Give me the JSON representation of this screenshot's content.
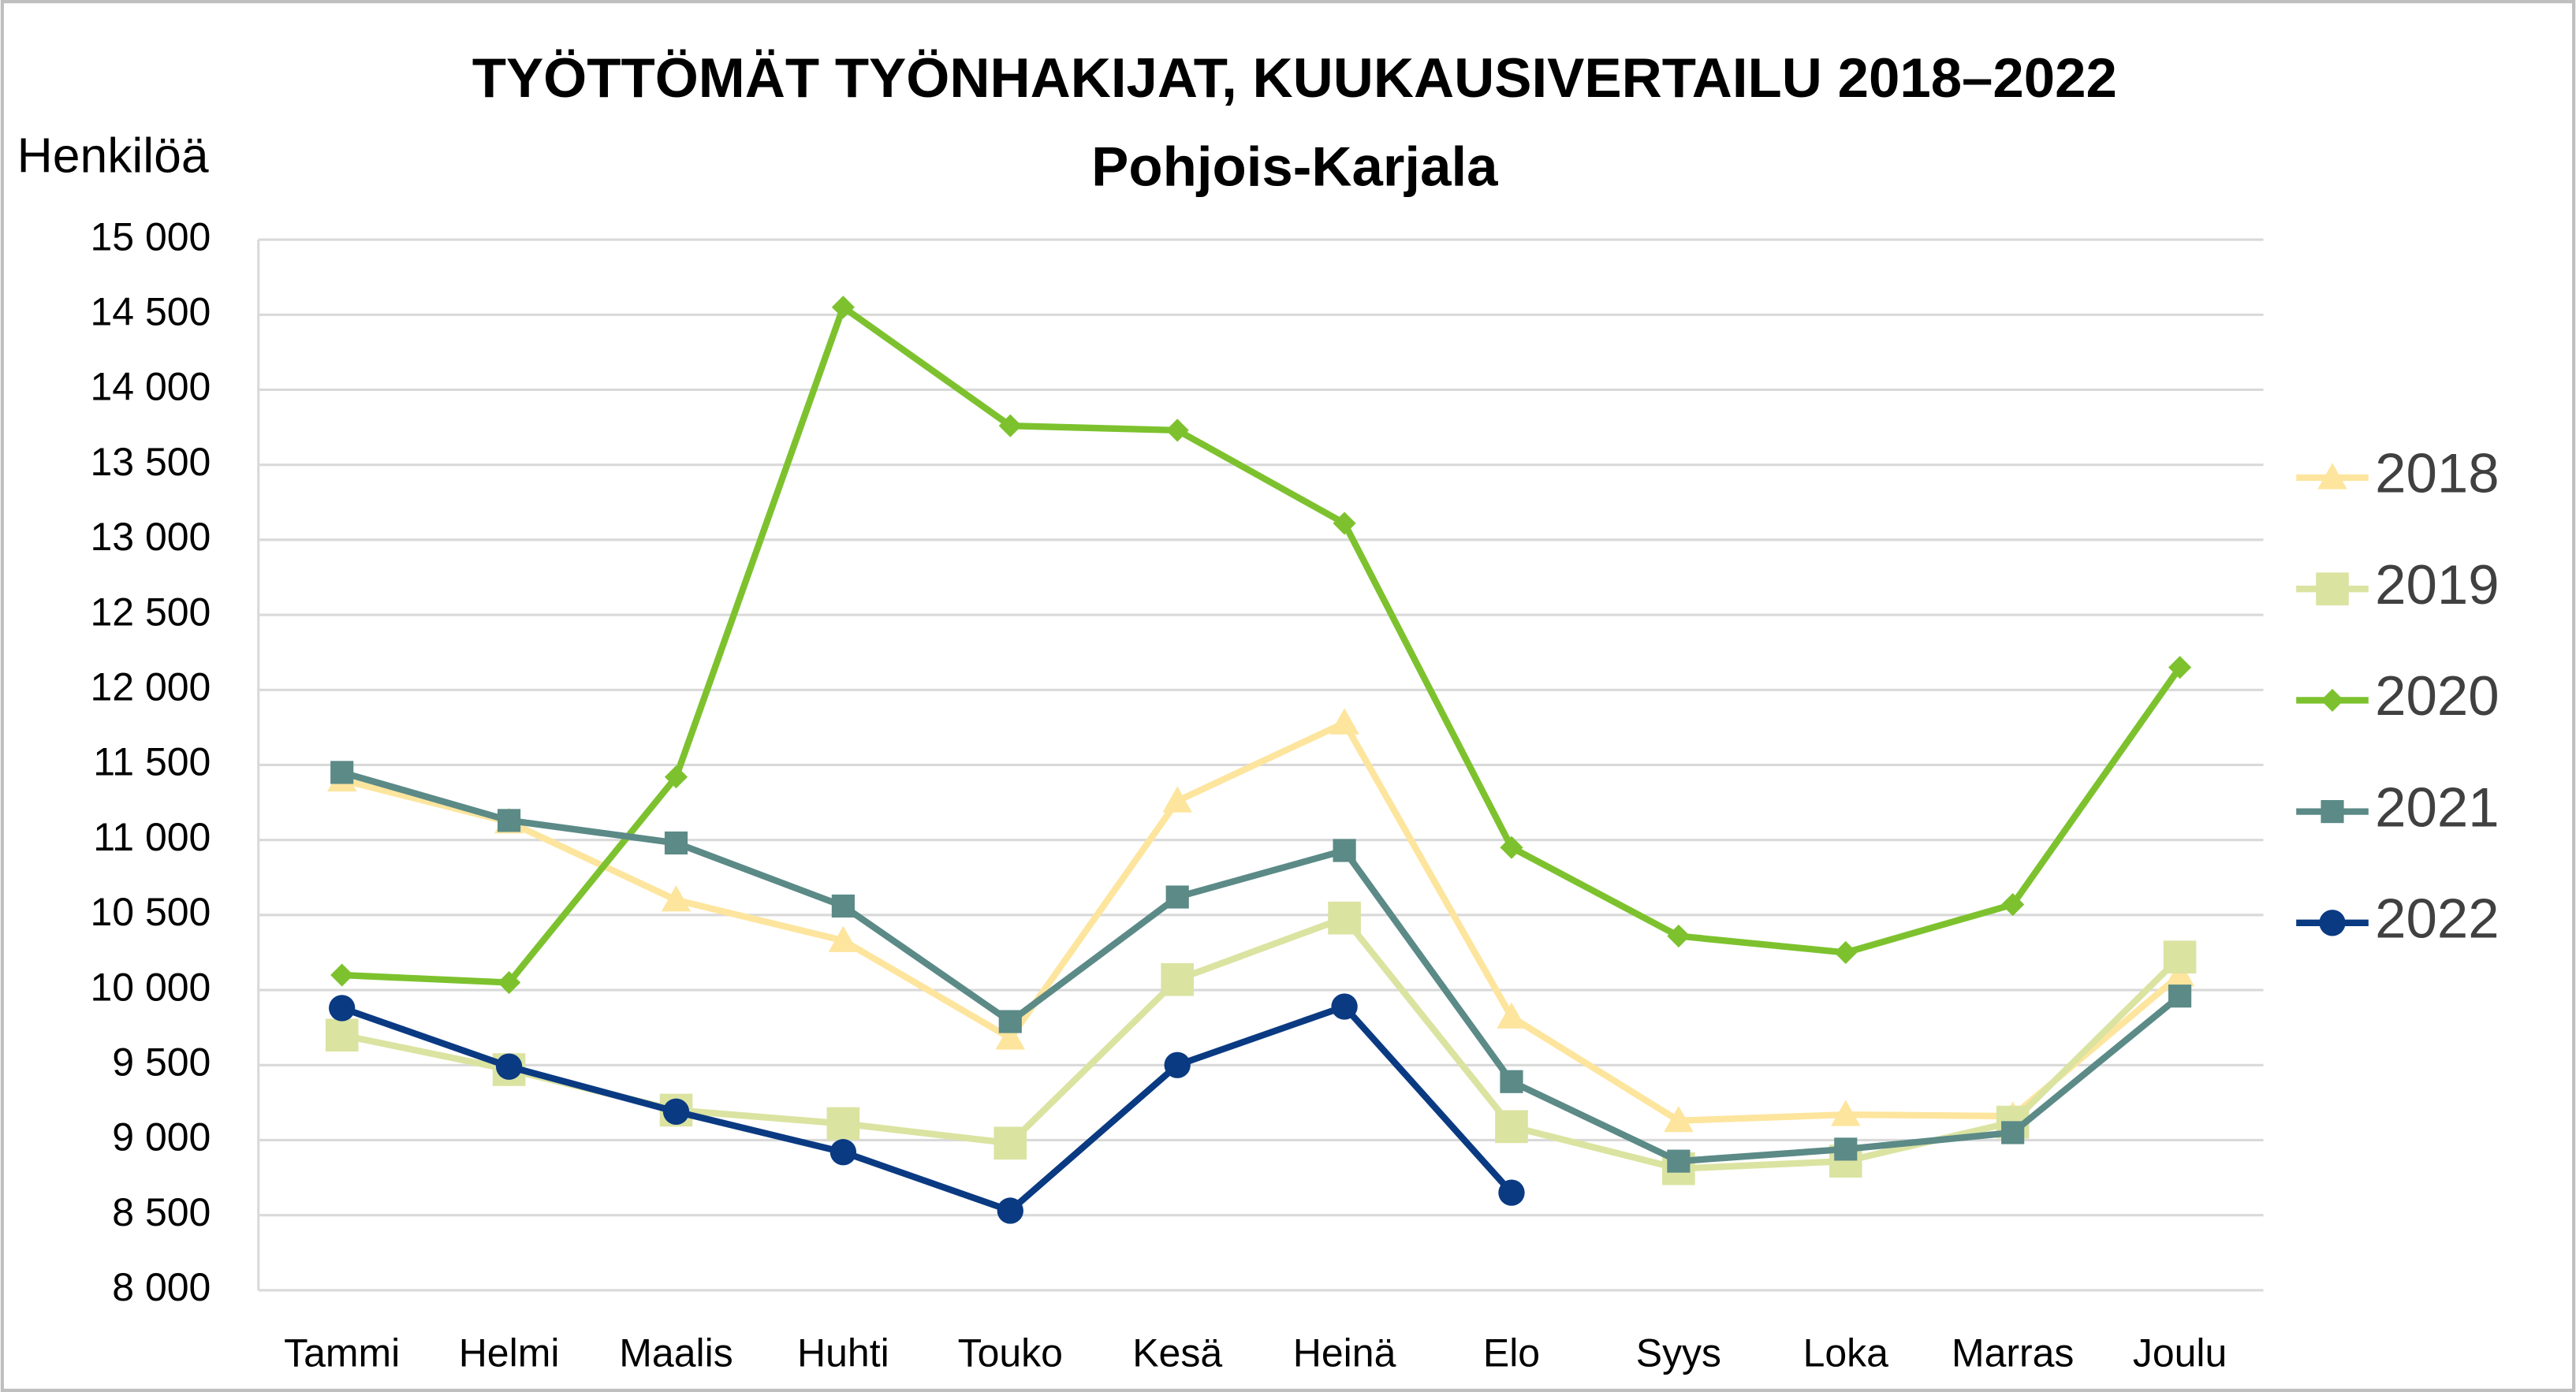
{
  "chart_data": {
    "type": "line",
    "title": "TYÖTTÖMÄT TYÖNHAKIJAT, KUUKAUSIVERTAILU 2018–2022",
    "subtitle": "Pohjois-Karjala",
    "y_label": "Henkilöä",
    "categories": [
      "Tammi",
      "Helmi",
      "Maalis",
      "Huhti",
      "Touko",
      "Kesä",
      "Heinä",
      "Elo",
      "Syys",
      "Loka",
      "Marras",
      "Joulu"
    ],
    "series": [
      {
        "name": "2018",
        "color": "#fde59e",
        "marker": "triangle",
        "values": [
          11400,
          11120,
          10600,
          10330,
          9680,
          11260,
          11780,
          9820,
          9130,
          9170,
          9160,
          10100
        ]
      },
      {
        "name": "2019",
        "color": "#dbe3a1",
        "marker": "square",
        "values": [
          9700,
          9470,
          9200,
          9110,
          8980,
          10070,
          10480,
          9090,
          8810,
          8860,
          9120,
          10220
        ]
      },
      {
        "name": "2020",
        "color": "#7dc22e",
        "marker": "diamond",
        "values": [
          10100,
          10050,
          11420,
          14550,
          13760,
          13730,
          13110,
          10950,
          10360,
          10250,
          10570,
          12150
        ]
      },
      {
        "name": "2021",
        "color": "#5b8a87",
        "marker": "square",
        "values": [
          11450,
          11130,
          10980,
          10560,
          9790,
          10620,
          10930,
          9390,
          8860,
          8940,
          9050,
          9960
        ]
      },
      {
        "name": "2022",
        "color": "#0a3a82",
        "marker": "circle",
        "values": [
          9880,
          9490,
          9190,
          8920,
          8530,
          9500,
          9890,
          8650,
          null,
          null,
          null,
          null
        ]
      }
    ],
    "ylim": [
      8000,
      15000
    ],
    "yticks": [
      {
        "value": 8000,
        "label": "8 000"
      },
      {
        "value": 8500,
        "label": "8 500"
      },
      {
        "value": 9000,
        "label": "9 000"
      },
      {
        "value": 9500,
        "label": "9 500"
      },
      {
        "value": 10000,
        "label": "10 000"
      },
      {
        "value": 10500,
        "label": "10 500"
      },
      {
        "value": 11000,
        "label": "11 000"
      },
      {
        "value": 11500,
        "label": "11 500"
      },
      {
        "value": 12000,
        "label": "12 000"
      },
      {
        "value": 12500,
        "label": "12 500"
      },
      {
        "value": 13000,
        "label": "13 000"
      },
      {
        "value": 13500,
        "label": "13 500"
      },
      {
        "value": 14000,
        "label": "14 000"
      },
      {
        "value": 14500,
        "label": "14 500"
      },
      {
        "value": 15000,
        "label": "15 000"
      }
    ],
    "grid": true,
    "legend": "right"
  }
}
